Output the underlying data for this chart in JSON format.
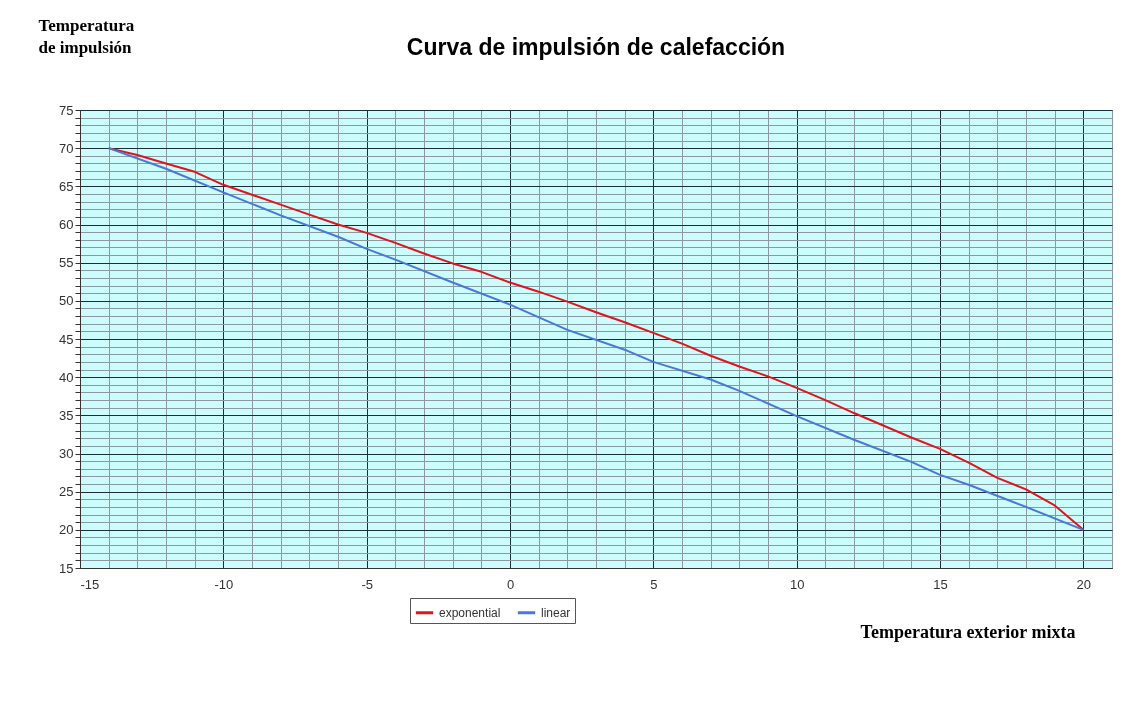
{
  "chart_data": {
    "type": "line",
    "title": "Curva de impulsión de calefacción",
    "xlabel": "Temperatura exterior mixta",
    "ylabel": "Temperatura de impulsión",
    "xlim": [
      -15,
      21
    ],
    "ylim": [
      15,
      75
    ],
    "xticks": [
      -15,
      {
        "value": -14,
        "label": null
      },
      {
        "value": -13,
        "label": null
      },
      {
        "value": -12,
        "label": null
      },
      {
        "value": -11,
        "label": null
      },
      -10,
      {
        "value": -9,
        "label": null
      },
      {
        "value": -8,
        "label": null
      },
      {
        "value": -7,
        "label": null
      },
      {
        "value": -6,
        "label": null
      },
      -5,
      {
        "value": -4,
        "label": null
      },
      {
        "value": -3,
        "label": null
      },
      {
        "value": -2,
        "label": null
      },
      {
        "value": -1,
        "label": null
      },
      0,
      {
        "value": 1,
        "label": null
      },
      {
        "value": 2,
        "label": null
      },
      {
        "value": 3,
        "label": null
      },
      {
        "value": 4,
        "label": null
      },
      5,
      {
        "value": 6,
        "label": null
      },
      {
        "value": 7,
        "label": null
      },
      {
        "value": 8,
        "label": null
      },
      {
        "value": 9,
        "label": null
      },
      10,
      {
        "value": 11,
        "label": null
      },
      {
        "value": 12,
        "label": null
      },
      {
        "value": 13,
        "label": null
      },
      {
        "value": 14,
        "label": null
      },
      15,
      {
        "value": 16,
        "label": null
      },
      {
        "value": 17,
        "label": null
      },
      {
        "value": 18,
        "label": null
      },
      {
        "value": 19,
        "label": null
      },
      20,
      {
        "value": 21,
        "label": null
      }
    ],
    "yticks": [
      15,
      {
        "value": 16,
        "label": null
      },
      {
        "value": 17,
        "label": null
      },
      {
        "value": 18,
        "label": null
      },
      {
        "value": 19,
        "label": null
      },
      20,
      {
        "value": 21,
        "label": null
      },
      {
        "value": 22,
        "label": null
      },
      {
        "value": 23,
        "label": null
      },
      {
        "value": 24,
        "label": null
      },
      25,
      {
        "value": 26,
        "label": null
      },
      {
        "value": 27,
        "label": null
      },
      {
        "value": 28,
        "label": null
      },
      {
        "value": 29,
        "label": null
      },
      30,
      {
        "value": 31,
        "label": null
      },
      {
        "value": 32,
        "label": null
      },
      {
        "value": 33,
        "label": null
      },
      {
        "value": 34,
        "label": null
      },
      35,
      {
        "value": 36,
        "label": null
      },
      {
        "value": 37,
        "label": null
      },
      {
        "value": 38,
        "label": null
      },
      {
        "value": 39,
        "label": null
      },
      40,
      {
        "value": 41,
        "label": null
      },
      {
        "value": 42,
        "label": null
      },
      {
        "value": 43,
        "label": null
      },
      {
        "value": 44,
        "label": null
      },
      45,
      {
        "value": 46,
        "label": null
      },
      {
        "value": 47,
        "label": null
      },
      {
        "value": 48,
        "label": null
      },
      {
        "value": 49,
        "label": null
      },
      50,
      {
        "value": 51,
        "label": null
      },
      {
        "value": 52,
        "label": null
      },
      {
        "value": 53,
        "label": null
      },
      {
        "value": 54,
        "label": null
      },
      55,
      {
        "value": 56,
        "label": null
      },
      {
        "value": 57,
        "label": null
      },
      {
        "value": 58,
        "label": null
      },
      {
        "value": 59,
        "label": null
      },
      60,
      {
        "value": 61,
        "label": null
      },
      {
        "value": 62,
        "label": null
      },
      {
        "value": 63,
        "label": null
      },
      {
        "value": 64,
        "label": null
      },
      65,
      {
        "value": 66,
        "label": null
      },
      {
        "value": 67,
        "label": null
      },
      {
        "value": 68,
        "label": null
      },
      {
        "value": 69,
        "label": null
      },
      70,
      {
        "value": 71,
        "label": null
      },
      {
        "value": 72,
        "label": null
      },
      {
        "value": 73,
        "label": null
      },
      {
        "value": 74,
        "label": null
      },
      75
    ],
    "grid": true,
    "legend": "bottom",
    "marker": "none",
    "line_style": "solid",
    "series": [
      {
        "name": "exponential",
        "color": "#e0141e",
        "x": [
          -14,
          -13,
          -12,
          -11,
          -10,
          -9,
          -8,
          -7,
          -6,
          -5,
          -4,
          -3,
          -2,
          -1,
          0,
          1,
          2,
          3,
          4,
          5,
          6,
          7,
          8,
          9,
          10,
          11,
          12,
          13,
          14,
          15,
          16,
          17,
          18,
          19,
          20
        ],
        "values": [
          70,
          69.1,
          68,
          66.9,
          65.2,
          63.9,
          62.6,
          61.3,
          60,
          58.9,
          57.6,
          56.2,
          54.9,
          53.8,
          52.4,
          51.2,
          49.9,
          48.5,
          47.2,
          45.8,
          44.4,
          42.8,
          41.4,
          40.1,
          38.6,
          37,
          35.3,
          33.7,
          32.1,
          30.6,
          28.8,
          26.8,
          25.3,
          23.2,
          20
        ]
      },
      {
        "name": "linear",
        "color": "#4a78d8",
        "x": [
          -14,
          -12,
          -10,
          -8,
          -6,
          -5,
          -4,
          -2,
          0,
          2,
          4,
          5,
          7,
          8,
          10,
          12,
          14,
          15,
          16,
          18,
          20
        ],
        "values": [
          70,
          67.3,
          64.2,
          61.2,
          58.4,
          56.8,
          55.4,
          52.4,
          49.5,
          46.2,
          43.6,
          42,
          39.7,
          38.2,
          34.9,
          31.8,
          28.9,
          27.2,
          25.9,
          23,
          20
        ]
      }
    ]
  }
}
